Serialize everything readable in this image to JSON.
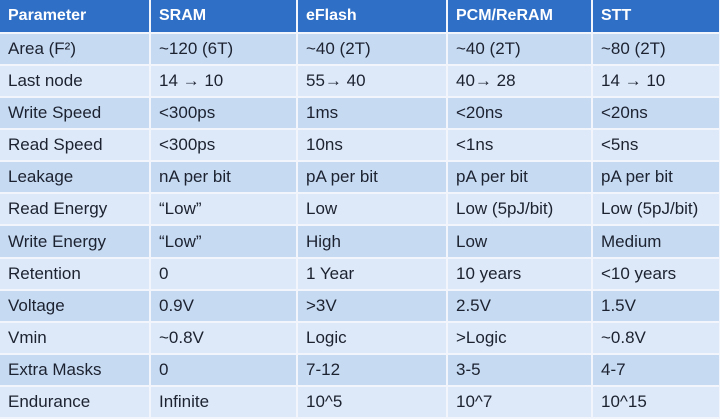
{
  "table": {
    "header": [
      "Parameter",
      "SRAM",
      "eFlash",
      "PCM/ReRAM",
      "STT"
    ],
    "rows": [
      [
        "Area (F²)",
        "~120 (6T)",
        "~40 (2T)",
        "~40 (2T)",
        "~80 (2T)"
      ],
      [
        "Last node",
        "14 → 10",
        "55→ 40",
        "40→ 28",
        "14 → 10"
      ],
      [
        "Write Speed",
        "<300ps",
        "1ms",
        "<20ns",
        "<20ns"
      ],
      [
        "Read Speed",
        "<300ps",
        "10ns",
        "<1ns",
        "<5ns"
      ],
      [
        "Leakage",
        "nA per bit",
        "pA per bit",
        "pA per bit",
        "pA per bit"
      ],
      [
        "Read Energy",
        "“Low”",
        "Low",
        "Low (5pJ/bit)",
        "Low (5pJ/bit)"
      ],
      [
        "Write Energy",
        "“Low”",
        "High",
        "Low",
        "Medium"
      ],
      [
        "Retention",
        "0",
        "1 Year",
        "10 years",
        "<10 years"
      ],
      [
        "Voltage",
        "0.9V",
        ">3V",
        "2.5V",
        "1.5V"
      ],
      [
        "Vmin",
        "~0.8V",
        "Logic",
        ">Logic",
        "~0.8V"
      ],
      [
        "Extra Masks",
        "0",
        "7-12",
        "3-5",
        "4-7"
      ],
      [
        "Endurance",
        "Infinite",
        "10^5",
        "10^7",
        "10^15"
      ]
    ]
  }
}
